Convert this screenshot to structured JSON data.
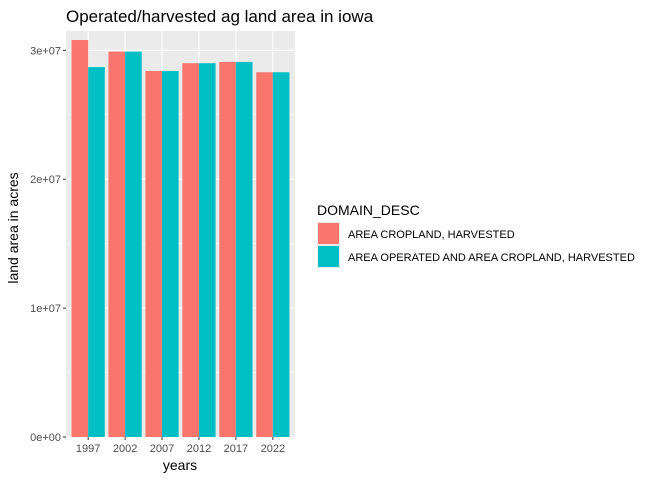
{
  "chart_data": {
    "type": "bar",
    "title": "Operated/harvested ag land area in iowa",
    "xlabel": "years",
    "ylabel": "land area in acres",
    "categories": [
      "1997",
      "2002",
      "2007",
      "2012",
      "2017",
      "2022"
    ],
    "series": [
      {
        "name": "AREA CROPLAND, HARVESTED",
        "values": [
          30800000,
          29900000,
          28400000,
          29000000,
          29100000,
          28300000
        ]
      },
      {
        "name": "AREA OPERATED AND AREA CROPLAND, HARVESTED",
        "values": [
          28700000,
          29900000,
          28400000,
          29000000,
          29100000,
          28300000
        ]
      }
    ],
    "ylim": [
      0,
      31500000
    ],
    "yticks": [
      0,
      10000000,
      20000000,
      30000000
    ],
    "ytick_labels": [
      "0e+00",
      "1e+07",
      "2e+07",
      "3e+07"
    ],
    "legend": {
      "title": "DOMAIN_DESC",
      "position": "right"
    },
    "grid": true,
    "colors": {
      "series": [
        "#F8766D",
        "#00BFC4"
      ],
      "panel": "#EBEBEB",
      "grid": "#FFFFFF",
      "text": "#000000",
      "tick_text": "#4D4D4D"
    }
  }
}
